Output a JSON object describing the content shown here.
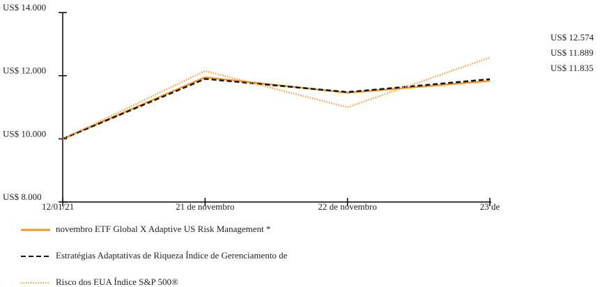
{
  "chart_data": {
    "type": "line",
    "categories": [
      "12/01/21",
      "21 de novembro",
      "22 de novembro",
      "23 de"
    ],
    "series": [
      {
        "name": "novembro ETF Global X Adaptive US Risk Management *",
        "color": "#f7941d",
        "style": "solid",
        "values": [
          10000,
          11950,
          11460,
          11835
        ],
        "value_labels": [
          null,
          null,
          null,
          "US$ 11.835"
        ]
      },
      {
        "name": "Estratégias Adaptativas de Riqueza Índice de Gerenciamento de",
        "color": "#111111",
        "style": "dashed",
        "values": [
          10000,
          11900,
          11480,
          11889
        ],
        "value_labels": [
          null,
          null,
          null,
          "US$ 11.889"
        ]
      },
      {
        "name": "Risco dos EUA Índice S&P 500®",
        "color": "#f5a040",
        "style": "dotted",
        "values": [
          10000,
          12150,
          11000,
          12574
        ],
        "value_labels": [
          null,
          null,
          null,
          "US$ 12.574"
        ]
      }
    ],
    "ylim": [
      8000,
      14000
    ],
    "yticks": [
      {
        "value": 8000,
        "label": "US$ 8.000"
      },
      {
        "value": 10000,
        "label": "US$ 10.000"
      },
      {
        "value": 12000,
        "label": "US$ 12.000"
      },
      {
        "value": 14000,
        "label": "US$ 14.000"
      }
    ]
  }
}
